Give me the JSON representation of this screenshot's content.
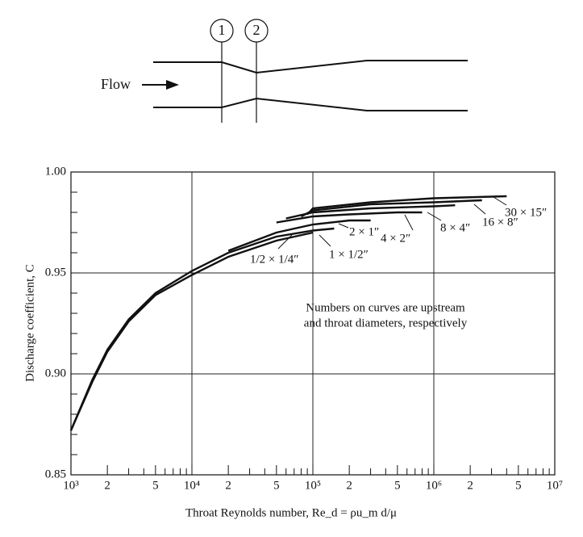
{
  "diagram": {
    "flow_label": "Flow",
    "stations": [
      "1",
      "2"
    ]
  },
  "chart_data": {
    "type": "line",
    "x_label": "Throat Reynolds number, Re_d = ρu_m d/μ",
    "y_label": "Discharge coefficient, C",
    "annotation": [
      "Numbers on curves are upstream",
      "and throat diameters, respectively"
    ],
    "x_log": true,
    "grid": true,
    "xlim": [
      1000,
      10000000
    ],
    "ylim": [
      0.85,
      1.0
    ],
    "xticks": [
      {
        "value": 1000,
        "label": "10³"
      },
      {
        "value": 2000,
        "label": "2"
      },
      {
        "value": 5000,
        "label": "5"
      },
      {
        "value": 10000,
        "label": "10⁴"
      },
      {
        "value": 20000,
        "label": "2"
      },
      {
        "value": 50000,
        "label": "5"
      },
      {
        "value": 100000,
        "label": "10⁵"
      },
      {
        "value": 200000,
        "label": "2"
      },
      {
        "value": 500000,
        "label": "5"
      },
      {
        "value": 1000000,
        "label": "10⁶"
      },
      {
        "value": 2000000,
        "label": "2"
      },
      {
        "value": 5000000,
        "label": "5"
      },
      {
        "value": 10000000,
        "label": "10⁷"
      }
    ],
    "xgrid": [
      10000,
      100000,
      1000000
    ],
    "xminor_ticks": [
      3000,
      4000,
      6000,
      7000,
      8000,
      9000,
      30000,
      40000,
      60000,
      70000,
      80000,
      90000,
      300000,
      400000,
      600000,
      700000,
      800000,
      900000,
      3000000,
      4000000,
      6000000,
      7000000,
      8000000,
      9000000
    ],
    "yticks": [
      0.85,
      {
        "value": 0.9,
        "label": "0.90"
      },
      0.95,
      {
        "value": 1.0,
        "label": "1.00"
      }
    ],
    "ygrid": [
      0.9,
      0.95
    ],
    "yminor_ticks": [
      0.86,
      0.87,
      0.88,
      0.89,
      0.91,
      0.92,
      0.93,
      0.94,
      0.96,
      0.97,
      0.98,
      0.99
    ],
    "series": [
      {
        "name": "1/2 × 1/4″",
        "color": "#111111",
        "x": [
          1000,
          1500,
          2000,
          3000,
          5000,
          10000,
          20000,
          50000,
          100000
        ],
        "values": [
          0.872,
          0.896,
          0.911,
          0.926,
          0.939,
          0.949,
          0.958,
          0.966,
          0.97
        ]
      },
      {
        "name": "1 × 1/2″",
        "color": "#111111",
        "x": [
          1000,
          1500,
          2000,
          3000,
          5000,
          10000,
          20000,
          50000,
          100000,
          150000
        ],
        "values": [
          0.872,
          0.897,
          0.912,
          0.927,
          0.94,
          0.951,
          0.96,
          0.968,
          0.971,
          0.972
        ]
      },
      {
        "name": "2 × 1″",
        "color": "#111111",
        "x": [
          20000,
          50000,
          100000,
          200000,
          300000
        ],
        "values": [
          0.961,
          0.97,
          0.974,
          0.976,
          0.976
        ]
      },
      {
        "name": "4 × 2″",
        "color": "#111111",
        "x": [
          50000,
          100000,
          200000,
          500000,
          800000
        ],
        "values": [
          0.975,
          0.978,
          0.979,
          0.98,
          0.98
        ]
      },
      {
        "name": "8 × 4″",
        "color": "#111111",
        "x": [
          60000,
          100000,
          300000,
          1000000,
          1500000
        ],
        "values": [
          0.977,
          0.98,
          0.982,
          0.983,
          0.9835
        ]
      },
      {
        "name": "16 × 8″",
        "color": "#111111",
        "x": [
          80000,
          100000,
          300000,
          1000000,
          2500000
        ],
        "values": [
          0.978,
          0.981,
          0.984,
          0.985,
          0.986
        ]
      },
      {
        "name": "30 × 15″",
        "color": "#111111",
        "x": [
          90000,
          100000,
          300000,
          1000000,
          4000000
        ],
        "values": [
          0.979,
          0.982,
          0.985,
          0.987,
          0.988
        ]
      }
    ]
  }
}
